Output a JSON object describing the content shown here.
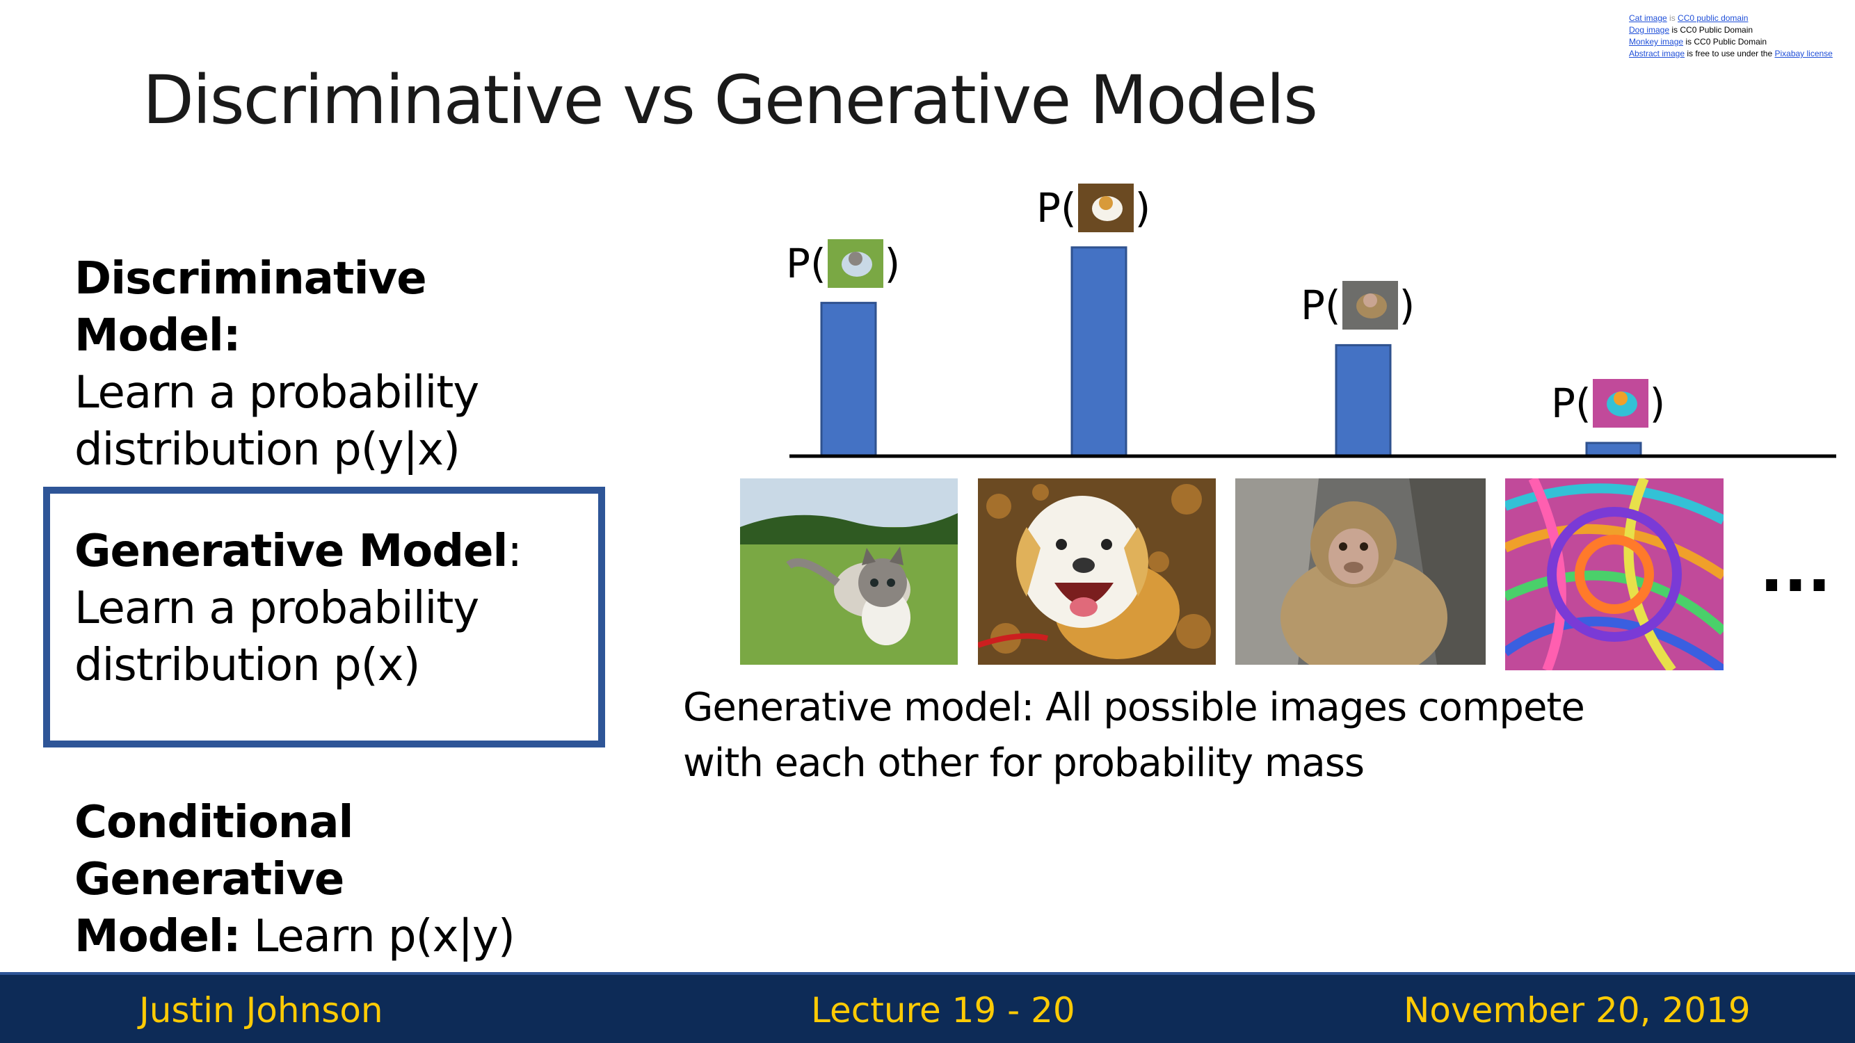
{
  "credits": [
    {
      "link": "Cat image",
      "mid": " is ",
      "link2": "CC0 public domain",
      "rest": ""
    },
    {
      "link": "Dog image",
      "mid": " is CC0 Public Domain",
      "link2": "",
      "rest": ""
    },
    {
      "link": "Monkey image",
      "mid": " is CC0 Public Domain",
      "link2": "",
      "rest": ""
    },
    {
      "link": "Abstract image",
      "mid": " is free to use under the ",
      "link2": "Pixabay license",
      "rest": ""
    }
  ],
  "title": "Discriminative vs Generative Models",
  "discriminative": {
    "heading": "Discriminative Model:",
    "body_line1": "Learn a probability",
    "body_line2": "distribution p(y|x)"
  },
  "generative": {
    "heading": "Generative Model",
    "colon": ":",
    "body_line1": "Learn a probability",
    "body_line2": "distribution p(x)"
  },
  "conditional": {
    "heading_line1": "Conditional Generative",
    "heading_line2": "Model:",
    "body": " Learn p(x|y)"
  },
  "chart_data": {
    "type": "bar",
    "categories": [
      "cat",
      "dog",
      "monkey",
      "abstract"
    ],
    "values": [
      0.58,
      0.79,
      0.42,
      0.05
    ],
    "label_prefix": "P(",
    "label_suffix": ")",
    "bar_color": "#4472c4",
    "ylim": [
      0,
      1
    ]
  },
  "ellipsis": "...",
  "caption": {
    "line1": "Generative model: All possible images compete",
    "line2": "with each other for probability mass"
  },
  "footer": {
    "author": "Justin Johnson",
    "lecture": "Lecture 19 - 20",
    "date": "November 20, 2019"
  },
  "colors": {
    "footer_bg": "#0d2b57",
    "footer_text": "#ffcb05",
    "box_border": "#2e5597"
  }
}
